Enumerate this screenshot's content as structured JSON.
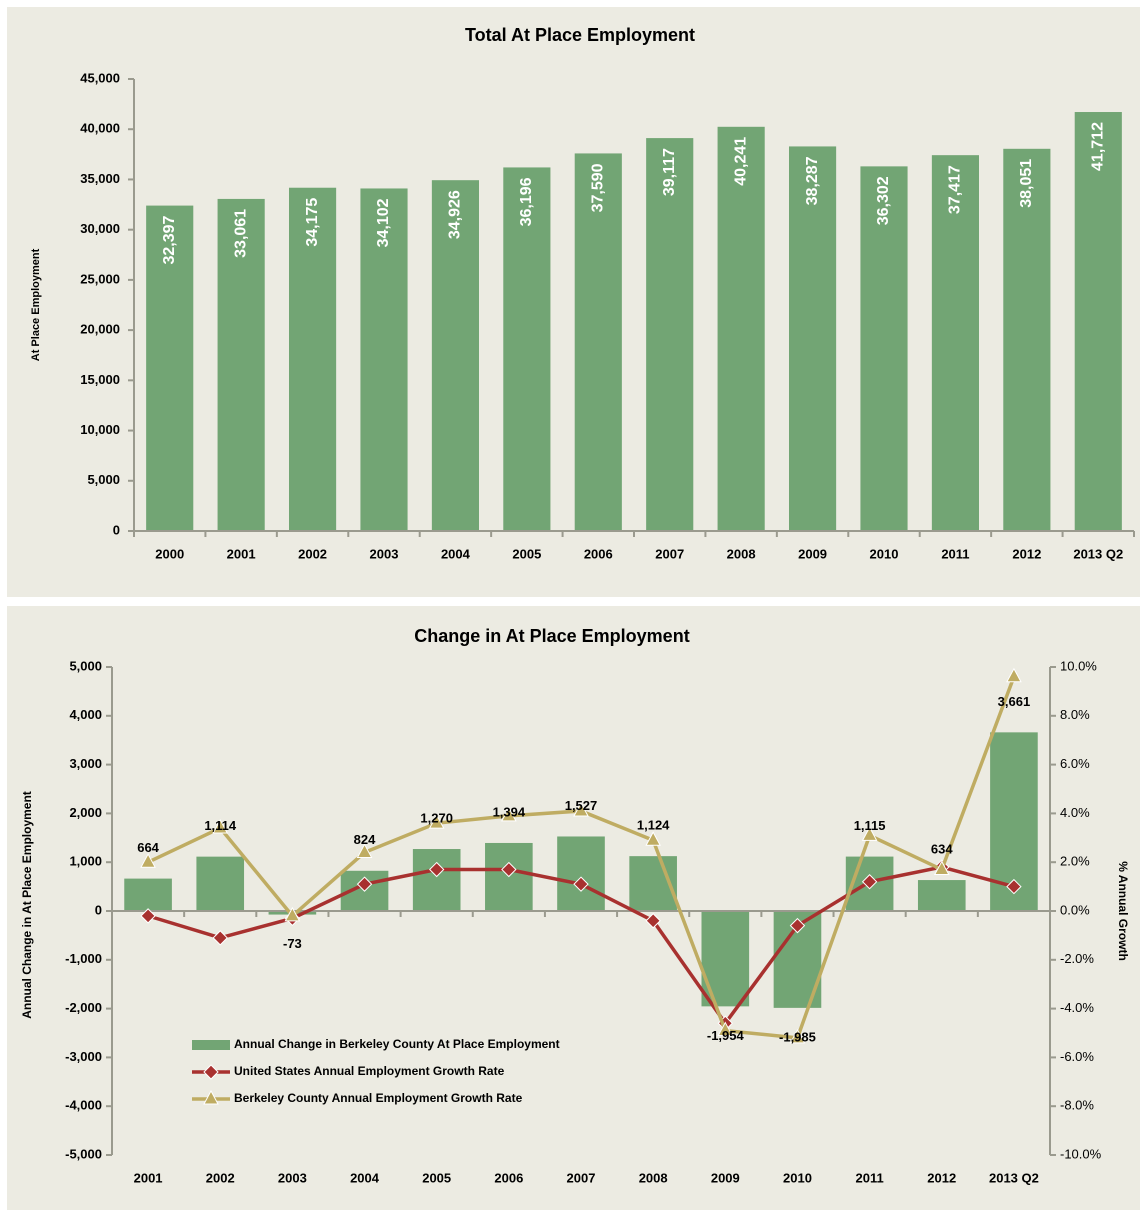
{
  "chart_data": [
    {
      "type": "bar",
      "title": "Total At Place Employment",
      "ylabel": "At Place Employment",
      "categories": [
        "2000",
        "2001",
        "2002",
        "2003",
        "2004",
        "2005",
        "2006",
        "2007",
        "2008",
        "2009",
        "2010",
        "2011",
        "2012",
        "2013 Q2"
      ],
      "values": [
        32397,
        33061,
        34175,
        34102,
        34926,
        36196,
        37590,
        39117,
        40241,
        38287,
        36302,
        37417,
        38051,
        41712
      ],
      "value_labels": [
        "32,397",
        "33,061",
        "34,175",
        "34,102",
        "34,926",
        "36,196",
        "37,590",
        "39,117",
        "40,241",
        "38,287",
        "36,302",
        "37,417",
        "38,051",
        "41,712"
      ],
      "color": "#72a574",
      "ylim": [
        0,
        45000
      ],
      "yticks": [
        0,
        {
          "value": 5000,
          "label": "5,000"
        },
        {
          "value": 10000,
          "label": "10,000"
        },
        {
          "value": 15000,
          "label": "15,000"
        },
        {
          "value": 20000,
          "label": "20,000"
        },
        {
          "value": 25000,
          "label": "25,000"
        },
        {
          "value": 30000,
          "label": "30,000"
        },
        {
          "value": 35000,
          "label": "35,000"
        },
        {
          "value": 40000,
          "label": "40,000"
        },
        {
          "value": 45000,
          "label": "45,000"
        }
      ]
    },
    {
      "type": "combo",
      "title": "Change in At Place Employment",
      "ylabel": "Annual Change in At Place Employment",
      "y2label": "% Annual Growth",
      "categories": [
        "2001",
        "2002",
        "2003",
        "2004",
        "2005",
        "2006",
        "2007",
        "2008",
        "2009",
        "2010",
        "2011",
        "2012",
        "2013 Q2"
      ],
      "legend": "lower left",
      "series": [
        {
          "name": "Annual Change in Berkeley County At Place Employment",
          "type": "bar",
          "color": "#72a574",
          "values": [
            664,
            1114,
            -73,
            824,
            1270,
            1394,
            1527,
            1124,
            -1954,
            -1985,
            1115,
            634,
            3661
          ],
          "value_labels": [
            "664",
            "1,114",
            "-73",
            "824",
            "1,270",
            "1,394",
            "1,527",
            "1,124",
            "-1,954",
            "-1,985",
            "1,115",
            "634",
            "3,661"
          ]
        },
        {
          "name": "United States Annual Employment Growth Rate",
          "type": "line",
          "axis": "y2",
          "marker": "diamond",
          "color": "#a8312f",
          "values": [
            -0.2,
            -1.1,
            -0.3,
            1.1,
            1.7,
            1.7,
            1.1,
            -0.4,
            -4.6,
            -0.6,
            1.2,
            1.8,
            1.0
          ]
        },
        {
          "name": "Berkeley County Annual Employment Growth Rate",
          "type": "line",
          "axis": "y2",
          "marker": "triangle",
          "color": "#bfac62",
          "values": [
            2.0,
            3.4,
            -0.2,
            2.4,
            3.6,
            3.9,
            4.1,
            2.9,
            -4.9,
            -5.2,
            3.1,
            1.7,
            9.6
          ]
        }
      ],
      "ylim": [
        -5000,
        5000
      ],
      "yticks": [
        {
          "value": -5000,
          "label": "-5,000"
        },
        {
          "value": -4000,
          "label": "-4,000"
        },
        {
          "value": -3000,
          "label": "-3,000"
        },
        {
          "value": -2000,
          "label": "-2,000"
        },
        {
          "value": -1000,
          "label": "-1,000"
        },
        0,
        {
          "value": 1000,
          "label": "1,000"
        },
        {
          "value": 2000,
          "label": "2,000"
        },
        {
          "value": 3000,
          "label": "3,000"
        },
        {
          "value": 4000,
          "label": "4,000"
        },
        {
          "value": 5000,
          "label": "5,000"
        }
      ],
      "y2lim": [
        -10,
        10
      ],
      "y2ticks": [
        {
          "value": -10,
          "label": "-10.0%"
        },
        {
          "value": -8,
          "label": "-8.0%"
        },
        {
          "value": -6,
          "label": "-6.0%"
        },
        {
          "value": -4,
          "label": "-4.0%"
        },
        {
          "value": -2,
          "label": "-2.0%"
        },
        {
          "value": 0,
          "label": "0.0%"
        },
        {
          "value": 2,
          "label": "2.0%"
        },
        {
          "value": 4,
          "label": "4.0%"
        },
        {
          "value": 6,
          "label": "6.0%"
        },
        {
          "value": 8,
          "label": "8.0%"
        },
        {
          "value": 10,
          "label": "10.0%"
        }
      ]
    }
  ]
}
